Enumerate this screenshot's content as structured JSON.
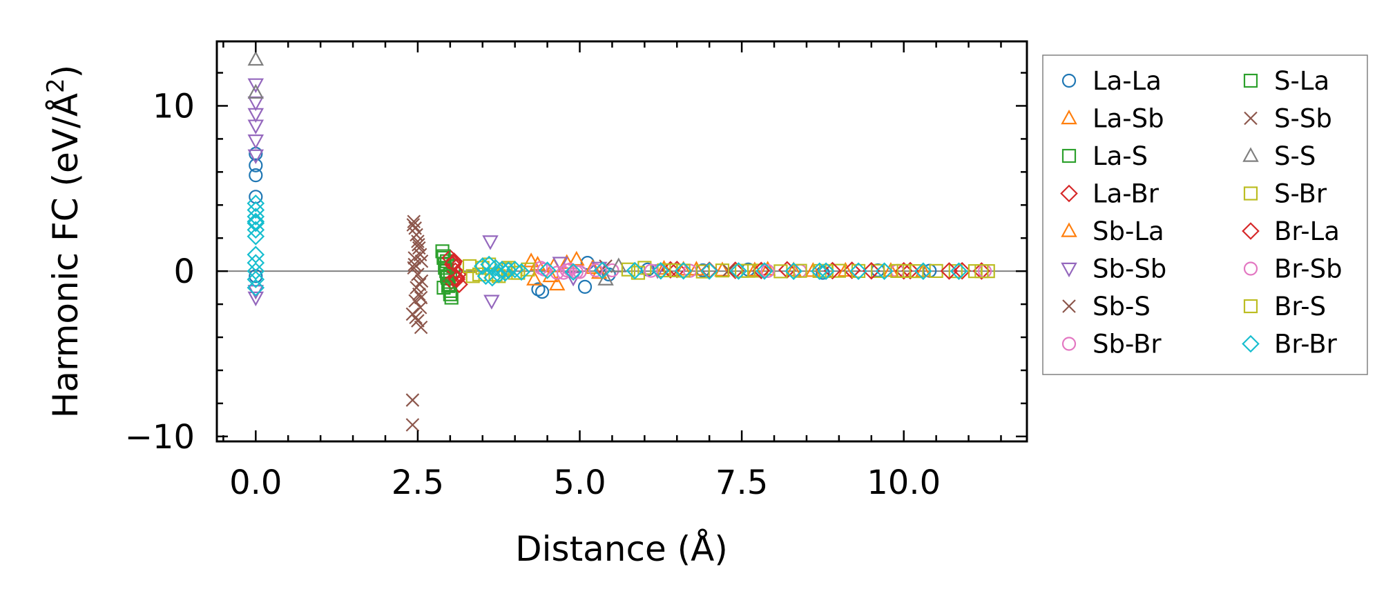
{
  "chart_data": {
    "type": "scatter",
    "title": "",
    "xlabel": "Distance (Å)",
    "ylabel": "Harmonic FC (eV/Å²)",
    "ylabel_base": "Harmonic FC (eV/Å",
    "ylabel_sup": "2",
    "ylabel_close": ")",
    "xlim": [
      -0.6,
      11.9
    ],
    "ylim": [
      -10.3,
      13.9
    ],
    "xticks": [
      0.0,
      2.5,
      5.0,
      7.5,
      10.0
    ],
    "xtick_labels": [
      "0.0",
      "2.5",
      "5.0",
      "7.5",
      "10.0"
    ],
    "yticks": [
      -10,
      0,
      10
    ],
    "ytick_labels": [
      "−10",
      "0",
      "10"
    ],
    "x_minor_step": 0.5,
    "y_minor_step": 2,
    "zero_line": 0,
    "legend_position": "outside-right",
    "legend_columns": 2,
    "series": [
      {
        "name": "La-La",
        "marker": "circle",
        "color": "#1f77b4",
        "x": [
          0,
          0,
          0,
          0,
          0,
          4.36,
          4.42,
          5.08,
          5.12,
          5.45,
          6.05,
          6.9,
          7.6,
          8.75,
          9.6,
          10.4
        ],
        "y": [
          5.8,
          6.4,
          7.1,
          4.5,
          -0.3,
          -1.1,
          -1.25,
          -0.95,
          0.5,
          -0.2,
          0.1,
          0.05,
          0.1,
          -0.1,
          0.05,
          0.02
        ]
      },
      {
        "name": "La-Sb",
        "marker": "triangle-up",
        "color": "#ff7f0e",
        "x": [
          4.25,
          4.3,
          4.6,
          4.65,
          4.95,
          5.2,
          6.3,
          6.8,
          7.2,
          7.9,
          8.3,
          9.1,
          9.8
        ],
        "y": [
          0.6,
          -0.5,
          0.3,
          -0.8,
          0.7,
          0.2,
          0.15,
          0.1,
          0.05,
          0.1,
          0.05,
          0.03,
          0.02
        ]
      },
      {
        "name": "La-S",
        "marker": "square",
        "color": "#2ca02c",
        "x": [
          2.88,
          2.9,
          2.92,
          2.94,
          2.96,
          2.98,
          3.0,
          3.02,
          2.9,
          2.95,
          3.0,
          3.05
        ],
        "y": [
          1.2,
          0.8,
          0.4,
          0.0,
          -0.4,
          -0.8,
          -1.2,
          -1.6,
          -1.0,
          0.6,
          -0.2,
          0.3
        ]
      },
      {
        "name": "La-Br",
        "marker": "diamond",
        "color": "#d62728",
        "x": [
          3.0,
          3.04,
          3.08,
          3.1,
          3.14,
          3.06,
          3.12,
          3.02,
          6.5,
          7.4,
          8.2,
          9.2,
          10.1,
          10.9
        ],
        "y": [
          0.8,
          0.4,
          0.0,
          -0.4,
          -0.8,
          0.6,
          -0.2,
          -0.6,
          0.1,
          0.05,
          0.08,
          0.05,
          0.03,
          0.02
        ]
      },
      {
        "name": "Sb-La",
        "marker": "triangle-up",
        "color": "#ff7f0e",
        "x": [
          4.35,
          4.55,
          4.8,
          5.3,
          6.6,
          7.7,
          8.6,
          10.3
        ],
        "y": [
          0.4,
          -0.3,
          0.5,
          -0.1,
          0.1,
          0.05,
          0.02,
          0.01
        ]
      },
      {
        "name": "Sb-Sb",
        "marker": "triangle-down",
        "color": "#9467bd",
        "x": [
          0,
          0,
          0,
          0,
          0,
          0,
          0,
          0,
          3.62,
          3.64,
          4.7,
          4.9,
          5.3,
          6.2
        ],
        "y": [
          11.3,
          10.2,
          9.5,
          8.8,
          7.9,
          7.0,
          -1.2,
          -1.6,
          1.8,
          -1.8,
          0.5,
          -0.4,
          0.2,
          0.05
        ]
      },
      {
        "name": "Sb-S",
        "marker": "x",
        "color": "#8c564b",
        "x": [
          2.42,
          2.42,
          2.44,
          2.46,
          2.48,
          2.5,
          2.52,
          2.54,
          2.56,
          2.44,
          2.5,
          2.56,
          2.48,
          2.52,
          2.46,
          2.54,
          2.42,
          2.5,
          2.55,
          2.45,
          5.4,
          7.3
        ],
        "y": [
          -9.3,
          -7.8,
          3.0,
          2.6,
          2.2,
          1.8,
          1.4,
          1.0,
          0.6,
          0.2,
          -0.2,
          -0.6,
          -1.0,
          -1.4,
          -1.8,
          -2.2,
          -2.6,
          -3.0,
          -3.4,
          0.4,
          0.3,
          0.05
        ]
      },
      {
        "name": "Sb-Br",
        "marker": "circle",
        "color": "#e377c2",
        "x": [
          4.4,
          4.75,
          4.85,
          5.0,
          5.5,
          6.7,
          8.4,
          9.9
        ],
        "y": [
          0.2,
          -0.1,
          0.1,
          -0.05,
          0.05,
          0.02,
          0.01,
          0.01
        ]
      },
      {
        "name": "S-La",
        "marker": "square",
        "color": "#2ca02c",
        "x": [
          2.9,
          2.95,
          3.0,
          2.92,
          2.97
        ],
        "y": [
          0.9,
          -0.3,
          -1.4,
          0.2,
          -0.9
        ]
      },
      {
        "name": "S-Sb",
        "marker": "x",
        "color": "#8c564b",
        "x": [
          2.43,
          2.47,
          2.51,
          2.55,
          2.45,
          2.53
        ],
        "y": [
          2.8,
          -2.8,
          1.6,
          -1.6,
          0.8,
          -0.8
        ]
      },
      {
        "name": "S-S",
        "marker": "triangle-up",
        "color": "#7f7f7f",
        "x": [
          0,
          0,
          5.4,
          5.6
        ],
        "y": [
          12.8,
          10.8,
          -0.5,
          0.3
        ]
      },
      {
        "name": "S-Br",
        "marker": "square",
        "color": "#bcbd22",
        "x": [
          3.3,
          3.45,
          3.6,
          3.75,
          3.9,
          4.05,
          4.2,
          5.75,
          5.9,
          6.0,
          6.3,
          6.6,
          6.9,
          7.2,
          7.5,
          7.8,
          8.1,
          8.4,
          8.7,
          9.0,
          9.3,
          9.6,
          9.9,
          10.2,
          10.5,
          10.8,
          11.1,
          11.3
        ],
        "y": [
          0.3,
          -0.2,
          0.4,
          -0.3,
          0.2,
          -0.1,
          0.1,
          0.1,
          -0.1,
          0.2,
          0.05,
          0.03,
          -0.02,
          0.04,
          0.02,
          0.03,
          -0.01,
          0.02,
          0.01,
          0.02,
          0.01,
          0.01,
          0.01,
          0.0,
          0.01,
          0.0,
          0.0,
          0.0
        ]
      },
      {
        "name": "Br-La",
        "marker": "diamond",
        "color": "#d62728",
        "x": [
          3.05,
          3.1,
          6.4,
          7.0,
          7.8,
          8.9,
          9.5,
          10.0,
          10.7,
          11.2
        ],
        "y": [
          0.5,
          -0.5,
          0.08,
          0.05,
          0.04,
          0.03,
          0.02,
          0.02,
          0.01,
          0.01
        ]
      },
      {
        "name": "Br-Sb",
        "marker": "circle",
        "color": "#e377c2",
        "x": [
          4.45,
          4.65,
          4.8,
          4.95,
          5.25,
          6.1,
          7.9,
          11.25
        ],
        "y": [
          0.1,
          -0.1,
          0.05,
          -0.05,
          0.05,
          0.02,
          0.01,
          0.0
        ]
      },
      {
        "name": "Br-S",
        "marker": "square",
        "color": "#bcbd22",
        "x": [
          3.35,
          3.5,
          3.7,
          3.85,
          4.0,
          6.4,
          7.6,
          8.8,
          10.0,
          11.2
        ],
        "y": [
          -0.3,
          0.2,
          -0.2,
          0.1,
          -0.1,
          0.05,
          0.02,
          0.01,
          0.01,
          0.0
        ]
      },
      {
        "name": "Br-Br",
        "marker": "diamond",
        "color": "#17becf",
        "x": [
          0,
          0,
          0,
          0,
          0,
          0,
          0,
          0,
          0,
          0,
          0,
          0,
          3.5,
          3.55,
          3.6,
          3.65,
          3.7,
          3.75,
          3.8,
          3.85,
          3.9,
          4.0,
          4.1,
          4.5,
          4.9,
          5.35,
          5.85,
          6.25,
          6.6,
          7.0,
          7.45,
          7.85,
          8.3,
          8.7,
          8.8,
          9.3,
          9.7,
          10.3,
          10.85
        ],
        "y": [
          4.1,
          3.7,
          3.3,
          2.9,
          2.5,
          2.1,
          1.0,
          0.5,
          0.0,
          -0.5,
          -1.0,
          3.0,
          0.3,
          -0.3,
          0.4,
          -0.4,
          0.2,
          -0.2,
          0.1,
          -0.1,
          0.05,
          0.1,
          -0.05,
          0.05,
          -0.05,
          0.05,
          0.03,
          0.02,
          0.02,
          0.01,
          0.01,
          0.01,
          0.0,
          0.0,
          0.0,
          0.0,
          0.0,
          0.0,
          0.0
        ]
      }
    ]
  }
}
